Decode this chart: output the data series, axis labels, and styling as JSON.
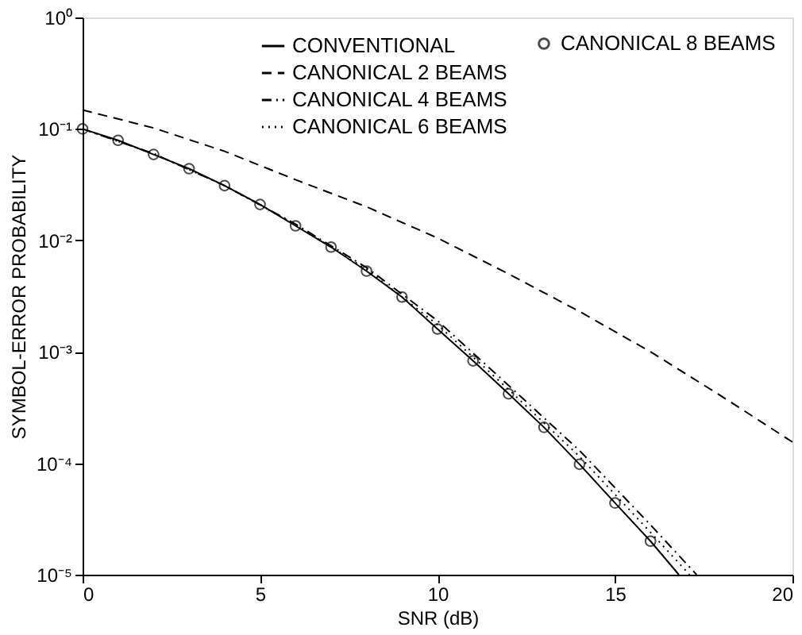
{
  "chart_data": {
    "type": "line",
    "xlabel": "SNR (dB)",
    "ylabel": "SYMBOL-ERROR PROBABILITY",
    "log": "y",
    "xlim": [
      0,
      20
    ],
    "xticks": [
      0,
      5,
      10,
      15,
      20
    ],
    "ylim": [
      1e-05,
      1
    ],
    "yticks": [
      {
        "value": 1,
        "label": "10⁰"
      },
      {
        "value": 0.1,
        "label": "10⁻¹"
      },
      {
        "value": 0.01,
        "label": "10⁻²"
      },
      {
        "value": 0.001,
        "label": "10⁻³"
      },
      {
        "value": 0.0001,
        "label": "10⁻⁴"
      },
      {
        "value": 1e-05,
        "label": "10⁻⁵"
      }
    ],
    "grid": false,
    "legend": "top right",
    "series": [
      {
        "name": "CONVENTIONAL",
        "color": "#000000",
        "line_style": "solid",
        "marker": "none",
        "x": [
          0,
          1,
          2,
          3,
          4,
          5,
          6,
          7,
          8,
          9,
          10,
          11,
          12,
          13,
          14,
          15,
          16,
          16.8
        ],
        "values": [
          0.1,
          0.079,
          0.059,
          0.044,
          0.031,
          0.021,
          0.0135,
          0.0087,
          0.0053,
          0.0031,
          0.0016,
          0.00083,
          0.00042,
          0.00021,
          9.8e-05,
          4.4e-05,
          2e-05,
          1e-05
        ]
      },
      {
        "name": "CANONICAL 2 BEAMS",
        "color": "#000000",
        "line_style": "dashed",
        "marker": "none",
        "x": [
          0,
          2,
          4,
          6,
          8,
          10,
          12,
          14,
          16,
          18,
          20
        ],
        "values": [
          0.148,
          0.102,
          0.063,
          0.035,
          0.02,
          0.0105,
          0.005,
          0.0023,
          0.001,
          0.0004,
          0.000155
        ]
      },
      {
        "name": "CANONICAL 4 BEAMS",
        "color": "#000000",
        "line_style": "dashdot",
        "marker": "none",
        "x": [
          0,
          2,
          4,
          6,
          8,
          10,
          12,
          14,
          16,
          17.3
        ],
        "values": [
          0.1,
          0.06,
          0.031,
          0.014,
          0.0057,
          0.0019,
          0.0005,
          0.00013,
          2.8e-05,
          1e-05
        ]
      },
      {
        "name": "CANONICAL 6 BEAMS",
        "color": "#000000",
        "line_style": "dotted",
        "marker": "none",
        "x": [
          0,
          2,
          4,
          6,
          8,
          10,
          12,
          14,
          16,
          17.1
        ],
        "values": [
          0.1,
          0.06,
          0.031,
          0.0138,
          0.0055,
          0.00175,
          0.00046,
          0.000115,
          2.4e-05,
          1e-05
        ]
      },
      {
        "name": "CANONICAL 8 BEAMS",
        "color": "#000000",
        "type": "scatter",
        "marker": "circle",
        "x": [
          0,
          1,
          2,
          3,
          4,
          5,
          6,
          7,
          8,
          9,
          10,
          11,
          12,
          13,
          14,
          15,
          16
        ],
        "values": [
          0.1,
          0.079,
          0.059,
          0.044,
          0.031,
          0.021,
          0.0135,
          0.0087,
          0.0053,
          0.0031,
          0.0016,
          0.00083,
          0.00042,
          0.00021,
          9.8e-05,
          4.4e-05,
          2e-05
        ]
      }
    ]
  }
}
